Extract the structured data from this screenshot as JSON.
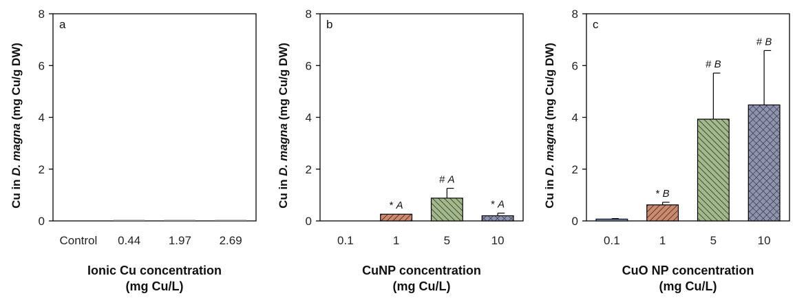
{
  "chart_data": [
    {
      "type": "bar",
      "panel_label": "a",
      "categories": [
        "Control",
        "0.44",
        "1.97",
        "2.69"
      ],
      "values": [
        0,
        0.005,
        0.02,
        0.02
      ],
      "errors": [
        0,
        0,
        0,
        0
      ],
      "annotations": [
        "",
        "",
        "",
        ""
      ],
      "xlabel": [
        "Ionic Cu concentration",
        "(mg Cu/L)"
      ],
      "ylabel": [
        "Cu in ",
        "D. magna",
        " (mg Cu/g DW)"
      ],
      "ylim": [
        0,
        8
      ],
      "yticks": [
        "0",
        "2",
        "4",
        "6",
        "8"
      ],
      "colors": [
        "#808080",
        "#808080",
        "#808080",
        "#808080"
      ],
      "patterns": [
        "none",
        "none",
        "none",
        "none"
      ]
    },
    {
      "type": "bar",
      "panel_label": "b",
      "categories": [
        "0.1",
        "1",
        "5",
        "10"
      ],
      "values": [
        0,
        0.26,
        0.88,
        0.2
      ],
      "errors": [
        0,
        0,
        0.38,
        0.1
      ],
      "annotations": [
        "",
        "* A",
        "# A",
        "* A"
      ],
      "xlabel": [
        "CuNP concentration",
        "(mg Cu/L)"
      ],
      "ylabel": [
        "Cu in ",
        "D. magna",
        " (mg Cu/g DW)"
      ],
      "ylim": [
        0,
        8
      ],
      "yticks": [
        "0",
        "2",
        "4",
        "6",
        "8"
      ],
      "colors": [
        "#8aa0c8",
        "#c98a70",
        "#a3b88c",
        "#8f93ad"
      ],
      "patterns": [
        "dots",
        "forward",
        "backward",
        "cross"
      ]
    },
    {
      "type": "bar",
      "panel_label": "c",
      "categories": [
        "0.1",
        "1",
        "5",
        "10"
      ],
      "values": [
        0.07,
        0.62,
        3.93,
        4.48
      ],
      "errors": [
        0.02,
        0.1,
        1.78,
        2.1
      ],
      "annotations": [
        "",
        "* B",
        "# B",
        "# B"
      ],
      "xlabel": [
        "CuO NP concentration",
        "(mg Cu/L)"
      ],
      "ylabel": [
        "Cu in ",
        "D. magna",
        " (mg Cu/g DW)"
      ],
      "ylim": [
        0,
        8
      ],
      "yticks": [
        "0",
        "2",
        "4",
        "6",
        "8"
      ],
      "colors": [
        "#8aa0c8",
        "#c98a70",
        "#a3b88c",
        "#8f93ad"
      ],
      "patterns": [
        "dots",
        "forward",
        "backward",
        "cross"
      ]
    }
  ]
}
